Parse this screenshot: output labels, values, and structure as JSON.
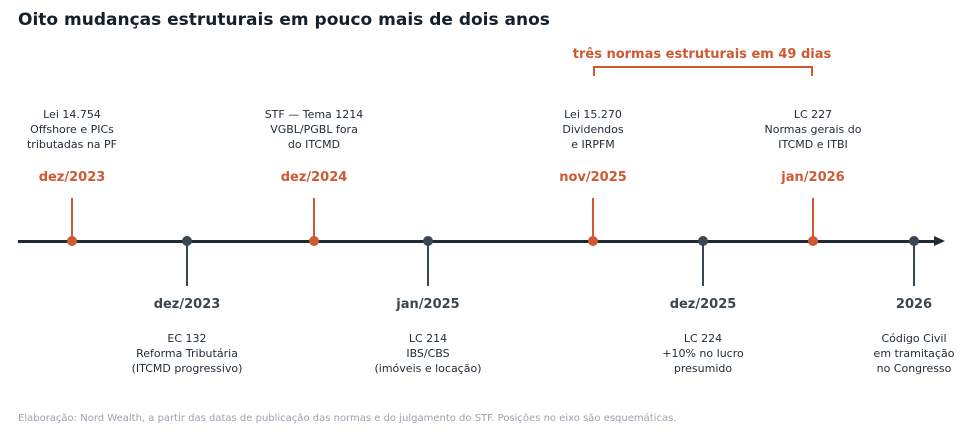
{
  "title": "Oito mudanças estruturais em pouco mais de dois anos",
  "annotation": "três normas estruturais em 49 dias",
  "colors": {
    "highlight": "#cf5a32",
    "axis": "#1f2a36",
    "secondary": "#3a4652",
    "footer": "#9aa3ad"
  },
  "events": [
    {
      "date": "dez/2023",
      "side": "above",
      "lines": [
        "Lei 14.754",
        "Offshore e PICs",
        "tributadas na PF"
      ]
    },
    {
      "date": "dez/2023",
      "side": "below",
      "lines": [
        "EC 132",
        "Reforma Tributária",
        "(ITCMD progressivo)"
      ]
    },
    {
      "date": "dez/2024",
      "side": "above",
      "lines": [
        "STF — Tema 1214",
        "VGBL/PGBL fora",
        "do ITCMD"
      ]
    },
    {
      "date": "jan/2025",
      "side": "below",
      "lines": [
        "LC 214",
        "IBS/CBS",
        "(imóveis e locação)"
      ]
    },
    {
      "date": "nov/2025",
      "side": "above",
      "lines": [
        "Lei 15.270",
        "Dividendos",
        "e IRPFM"
      ]
    },
    {
      "date": "dez/2025",
      "side": "below",
      "lines": [
        "LC 224",
        "+10% no lucro",
        "presumido"
      ]
    },
    {
      "date": "jan/2026",
      "side": "above",
      "lines": [
        "LC 227",
        "Normas gerais do",
        "ITCMD e ITBI"
      ]
    },
    {
      "date": "2026",
      "side": "below",
      "lines": [
        "Código Civil",
        "em tramitação",
        "no Congresso"
      ]
    }
  ],
  "footer": "Elaboração: Nord Wealth, a partir das datas de publicação das normas e do julgamento do STF. Posições no eixo são esquemáticas."
}
